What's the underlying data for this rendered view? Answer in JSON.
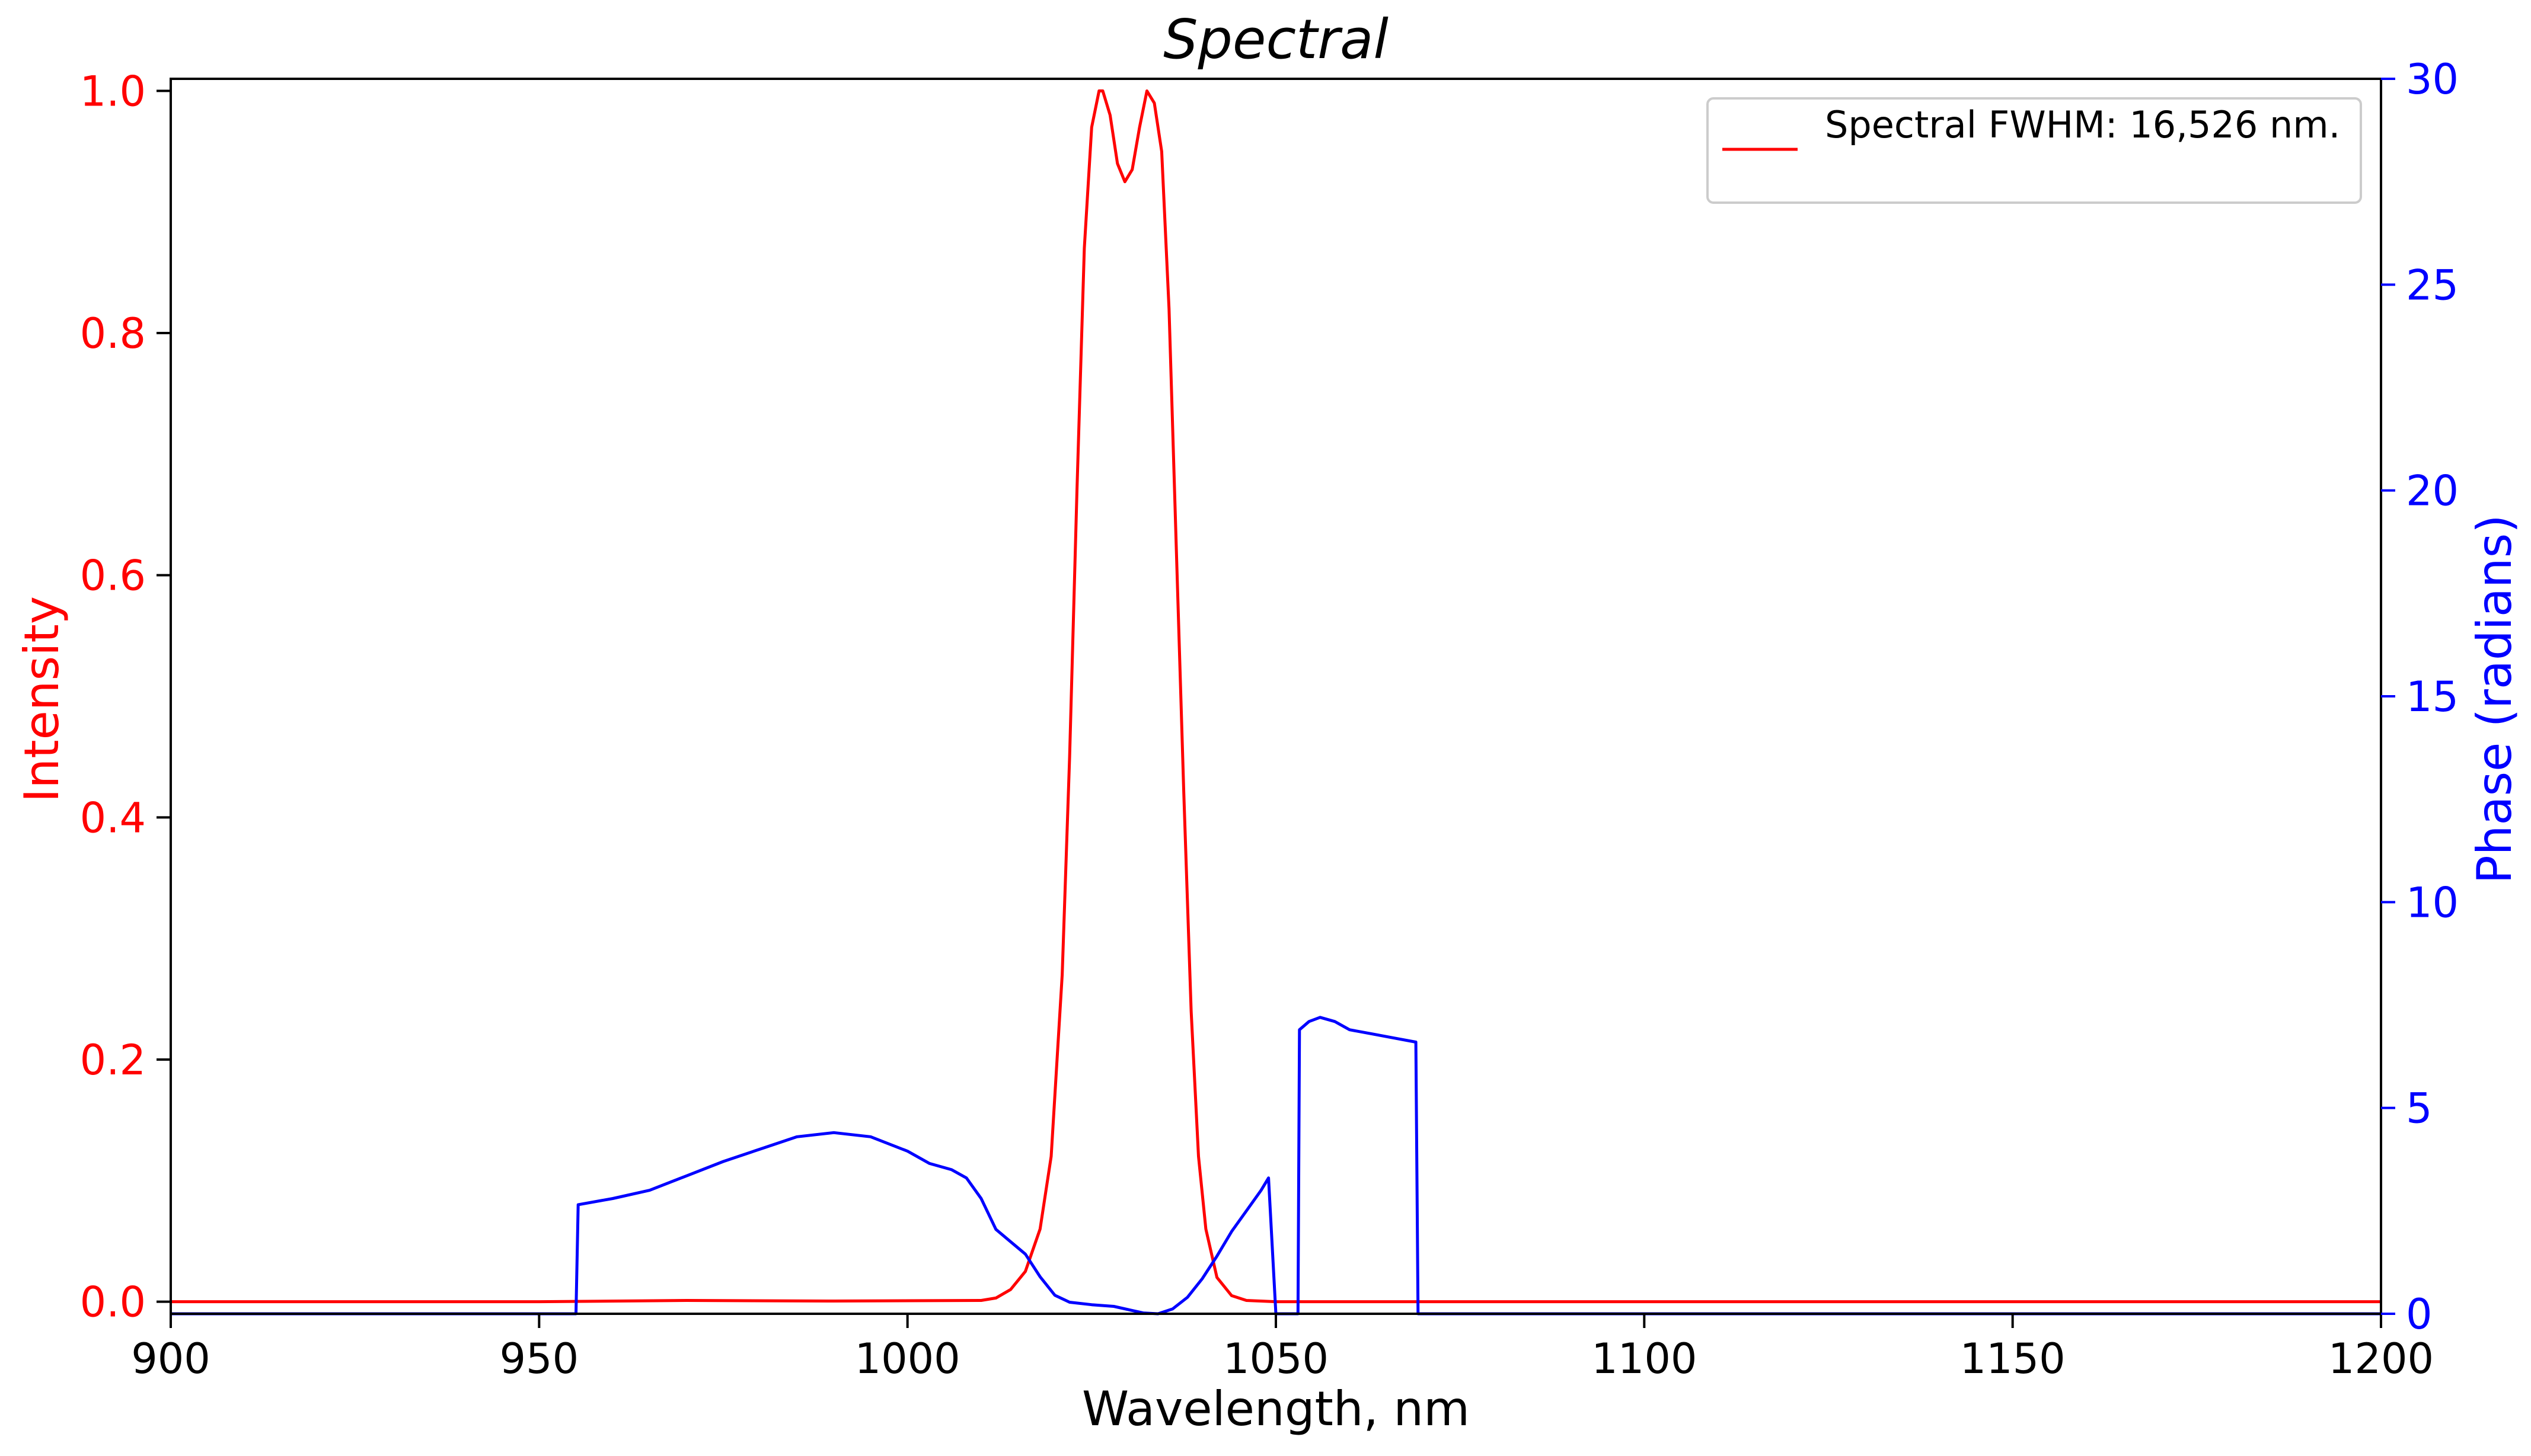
{
  "chart_data": {
    "type": "line",
    "title": "Spectral",
    "xlabel": "Wavelength, nm",
    "ylabel_left": "Intensity",
    "ylabel_right": "Phase (radians)",
    "xlim": [
      900,
      1200
    ],
    "ylim_left": [
      -0.01,
      1.01
    ],
    "ylim_right": [
      0,
      30
    ],
    "x_ticks": [
      900,
      950,
      1000,
      1050,
      1100,
      1150,
      1200
    ],
    "y_ticks_left": [
      0.0,
      0.2,
      0.4,
      0.6,
      0.8,
      1.0
    ],
    "y_ticks_right": [
      0,
      5,
      10,
      15,
      20,
      25,
      30
    ],
    "x_tick_labels": [
      "900",
      "950",
      "1000",
      "1050",
      "1100",
      "1150",
      "1200"
    ],
    "y_tick_labels_left": [
      "0.0",
      "0.2",
      "0.4",
      "0.6",
      "0.8",
      "1.0"
    ],
    "y_tick_labels_right": [
      "0",
      "5",
      "10",
      "15",
      "20",
      "25",
      "30"
    ],
    "grid": false,
    "legend_position": "top-right",
    "colors": {
      "intensity": "#ff0000",
      "phase": "#0000ff",
      "axis": "#000000",
      "legend_border": "#cccccc"
    },
    "series": [
      {
        "name": "Spectral FWHM: 16,526 nm.",
        "axis": "left",
        "points": [
          [
            900,
            0
          ],
          [
            950,
            0
          ],
          [
            970,
            0.001
          ],
          [
            990,
            0.0005
          ],
          [
            1010,
            0.001
          ],
          [
            1012,
            0.003
          ],
          [
            1014,
            0.01
          ],
          [
            1016,
            0.025
          ],
          [
            1018,
            0.06
          ],
          [
            1019.5,
            0.12
          ],
          [
            1021,
            0.27
          ],
          [
            1022,
            0.45
          ],
          [
            1023,
            0.67
          ],
          [
            1024,
            0.87
          ],
          [
            1025,
            0.97
          ],
          [
            1026,
            1.0
          ],
          [
            1026.5,
            1.0
          ],
          [
            1027.5,
            0.98
          ],
          [
            1028.5,
            0.94
          ],
          [
            1029.5,
            0.925
          ],
          [
            1030.5,
            0.935
          ],
          [
            1031.5,
            0.97
          ],
          [
            1032.5,
            1.0
          ],
          [
            1033.5,
            0.99
          ],
          [
            1034.5,
            0.95
          ],
          [
            1035.5,
            0.82
          ],
          [
            1036.5,
            0.62
          ],
          [
            1037.5,
            0.42
          ],
          [
            1038.5,
            0.24
          ],
          [
            1039.5,
            0.12
          ],
          [
            1040.5,
            0.06
          ],
          [
            1042,
            0.02
          ],
          [
            1044,
            0.005
          ],
          [
            1046,
            0.001
          ],
          [
            1050,
            0
          ],
          [
            1100,
            0
          ],
          [
            1200,
            0
          ]
        ]
      },
      {
        "name": "",
        "axis": "right",
        "points": [
          [
            900,
            0
          ],
          [
            955,
            0
          ],
          [
            955.3,
            2.65
          ],
          [
            960,
            2.8
          ],
          [
            965,
            3.0
          ],
          [
            970,
            3.35
          ],
          [
            975,
            3.7
          ],
          [
            980,
            4.0
          ],
          [
            985,
            4.3
          ],
          [
            990,
            4.4
          ],
          [
            995,
            4.3
          ],
          [
            1000,
            3.95
          ],
          [
            1003,
            3.65
          ],
          [
            1006,
            3.5
          ],
          [
            1008,
            3.3
          ],
          [
            1010,
            2.8
          ],
          [
            1012,
            2.05
          ],
          [
            1014,
            1.75
          ],
          [
            1016,
            1.45
          ],
          [
            1018,
            0.9
          ],
          [
            1020,
            0.45
          ],
          [
            1022,
            0.28
          ],
          [
            1025,
            0.22
          ],
          [
            1028,
            0.18
          ],
          [
            1030,
            0.1
          ],
          [
            1032,
            0.02
          ],
          [
            1034,
            0.0
          ],
          [
            1036,
            0.12
          ],
          [
            1038,
            0.4
          ],
          [
            1040,
            0.85
          ],
          [
            1042,
            1.4
          ],
          [
            1044,
            2.0
          ],
          [
            1046,
            2.5
          ],
          [
            1048,
            3.0
          ],
          [
            1049,
            3.3
          ],
          [
            1050,
            0
          ],
          [
            1053,
            0
          ],
          [
            1053.2,
            6.9
          ],
          [
            1054.5,
            7.1
          ],
          [
            1056,
            7.2
          ],
          [
            1058,
            7.1
          ],
          [
            1060,
            6.9
          ],
          [
            1063,
            6.8
          ],
          [
            1066,
            6.7
          ],
          [
            1069,
            6.6
          ],
          [
            1069.3,
            0
          ],
          [
            1200,
            0
          ]
        ]
      }
    ]
  }
}
